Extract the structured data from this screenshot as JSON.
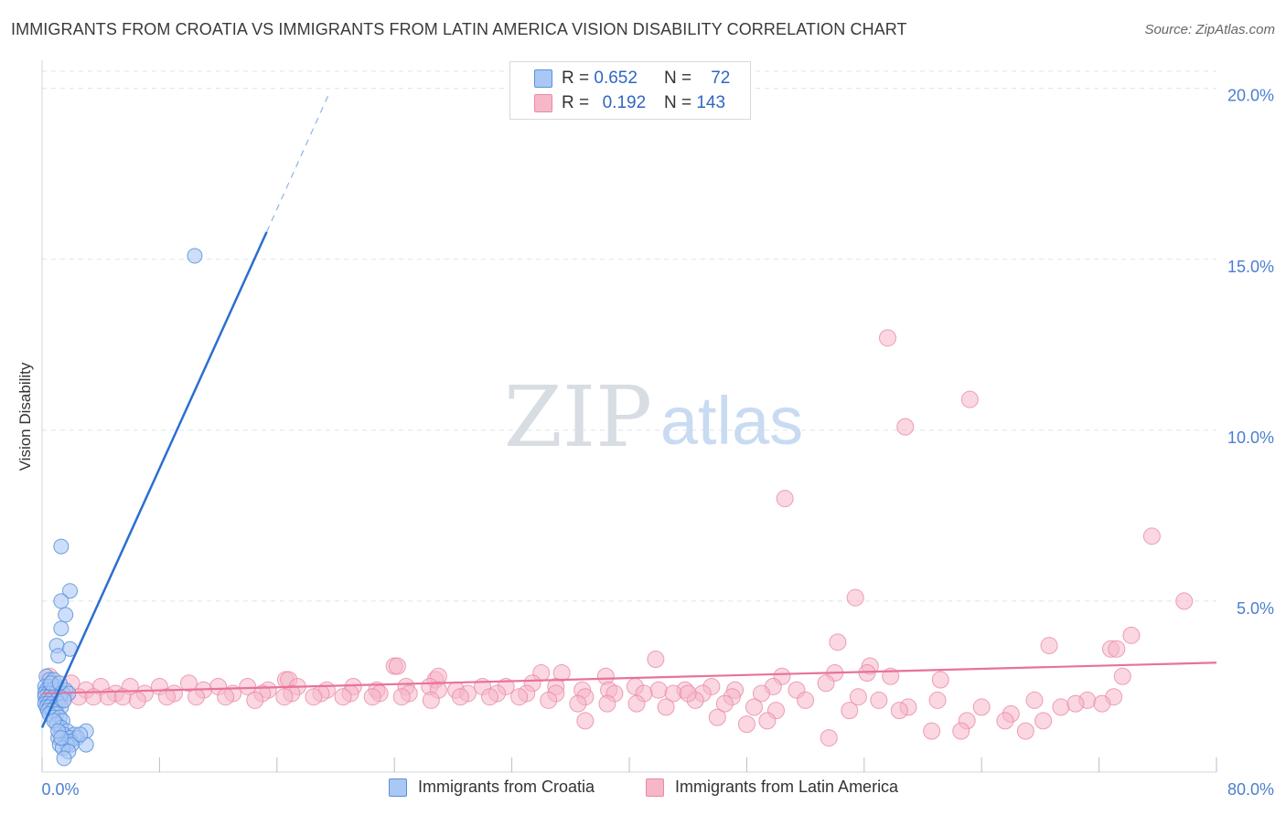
{
  "title": "IMMIGRANTS FROM CROATIA VS IMMIGRANTS FROM LATIN AMERICA VISION DISABILITY CORRELATION CHART",
  "source": "Source: ZipAtlas.com",
  "colors": {
    "blue_fill": "#aac8f5",
    "blue_stroke": "#5a8fd8",
    "blue_line": "#2b6fcf",
    "pink_fill": "#f6b7c8",
    "pink_stroke": "#e889a5",
    "pink_line": "#e8729a",
    "grid": "#dde3ea",
    "tick_text": "#4a7fd1"
  },
  "legend": {
    "row1": {
      "r_label": "R =",
      "r_value": "0.652",
      "n_label": "N =",
      "n_value": "72"
    },
    "row2": {
      "r_label": "R =",
      "r_value": "0.192",
      "n_label": "N =",
      "n_value": "143"
    }
  },
  "bottom_legend": {
    "series1": "Immigrants from Croatia",
    "series2": "Immigrants from Latin America"
  },
  "watermark": {
    "part1": "ZIP",
    "part2": "atlas"
  },
  "chart_data": {
    "type": "scatter",
    "title": "IMMIGRANTS FROM CROATIA VS IMMIGRANTS FROM LATIN AMERICA VISION DISABILITY CORRELATION CHART",
    "xlabel": "",
    "ylabel": "Vision Disability",
    "xlim": [
      0,
      80
    ],
    "ylim": [
      0,
      20.5
    ],
    "x_tick_labels": [
      "0.0%",
      "80.0%"
    ],
    "y_ticks": [
      5,
      10,
      15,
      20
    ],
    "y_tick_labels": [
      "5.0%",
      "10.0%",
      "15.0%",
      "20.0%"
    ],
    "series": [
      {
        "name": "Immigrants from Croatia",
        "color": "#aac8f5",
        "r": 0.652,
        "n": 72,
        "trend": {
          "x": [
            0.0,
            15.3
          ],
          "y": [
            1.3,
            15.8
          ]
        },
        "trend_dashed": {
          "x": [
            15.3,
            19.5
          ],
          "y": [
            15.8,
            19.8
          ]
        },
        "points": [
          [
            10.4,
            15.1
          ],
          [
            1.3,
            6.6
          ],
          [
            1.9,
            5.3
          ],
          [
            1.3,
            5.0
          ],
          [
            1.6,
            4.6
          ],
          [
            1.3,
            4.2
          ],
          [
            1.0,
            3.7
          ],
          [
            1.9,
            3.6
          ],
          [
            1.1,
            3.4
          ],
          [
            0.3,
            2.8
          ],
          [
            0.5,
            2.7
          ],
          [
            0.8,
            2.7
          ],
          [
            0.2,
            2.5
          ],
          [
            0.5,
            2.5
          ],
          [
            1.0,
            2.5
          ],
          [
            0.3,
            2.4
          ],
          [
            0.7,
            2.4
          ],
          [
            1.1,
            2.4
          ],
          [
            1.6,
            2.4
          ],
          [
            0.2,
            2.3
          ],
          [
            0.4,
            2.3
          ],
          [
            0.6,
            2.3
          ],
          [
            0.9,
            2.3
          ],
          [
            1.4,
            2.3
          ],
          [
            1.8,
            2.3
          ],
          [
            0.2,
            2.2
          ],
          [
            0.5,
            2.2
          ],
          [
            0.8,
            2.2
          ],
          [
            1.2,
            2.2
          ],
          [
            0.3,
            2.1
          ],
          [
            0.6,
            2.1
          ],
          [
            1.0,
            2.1
          ],
          [
            0.2,
            2.0
          ],
          [
            0.4,
            2.0
          ],
          [
            0.7,
            2.0
          ],
          [
            1.1,
            2.0
          ],
          [
            0.3,
            1.9
          ],
          [
            0.5,
            1.9
          ],
          [
            0.9,
            1.9
          ],
          [
            1.3,
            1.9
          ],
          [
            0.4,
            1.8
          ],
          [
            0.7,
            1.8
          ],
          [
            0.5,
            1.7
          ],
          [
            1.0,
            1.7
          ],
          [
            0.8,
            1.6
          ],
          [
            1.2,
            1.6
          ],
          [
            1.4,
            1.5
          ],
          [
            1.0,
            1.4
          ],
          [
            1.3,
            1.3
          ],
          [
            1.7,
            1.2
          ],
          [
            3.0,
            1.2
          ],
          [
            1.5,
            1.1
          ],
          [
            2.2,
            1.1
          ],
          [
            1.1,
            1.0
          ],
          [
            1.9,
            1.0
          ],
          [
            2.4,
            1.0
          ],
          [
            1.6,
            0.9
          ],
          [
            1.9,
            0.9
          ],
          [
            1.2,
            0.8
          ],
          [
            1.7,
            0.8
          ],
          [
            2.0,
            0.8
          ],
          [
            3.0,
            0.8
          ],
          [
            1.4,
            0.7
          ],
          [
            1.8,
            0.6
          ],
          [
            1.5,
            0.4
          ],
          [
            0.6,
            2.6
          ],
          [
            1.2,
            2.6
          ],
          [
            1.5,
            2.1
          ],
          [
            0.8,
            1.5
          ],
          [
            1.1,
            1.2
          ],
          [
            1.3,
            1.0
          ],
          [
            2.6,
            1.1
          ]
        ]
      },
      {
        "name": "Immigrants from Latin America",
        "color": "#f6b7c8",
        "r": 0.192,
        "n": 143,
        "trend": {
          "x": [
            0.0,
            80.0
          ],
          "y": [
            2.3,
            3.2
          ]
        },
        "points": [
          [
            57.6,
            12.7
          ],
          [
            63.2,
            10.9
          ],
          [
            58.8,
            10.1
          ],
          [
            50.6,
            8.0
          ],
          [
            75.6,
            6.9
          ],
          [
            77.8,
            5.0
          ],
          [
            55.4,
            5.1
          ],
          [
            74.2,
            4.0
          ],
          [
            54.2,
            3.8
          ],
          [
            68.6,
            3.7
          ],
          [
            72.8,
            3.6
          ],
          [
            73.2,
            3.6
          ],
          [
            41.8,
            3.3
          ],
          [
            24.0,
            3.1
          ],
          [
            24.2,
            3.1
          ],
          [
            56.4,
            3.1
          ],
          [
            54.0,
            2.9
          ],
          [
            57.8,
            2.8
          ],
          [
            73.6,
            2.8
          ],
          [
            16.6,
            2.7
          ],
          [
            16.8,
            2.7
          ],
          [
            26.8,
            2.7
          ],
          [
            27.0,
            2.8
          ],
          [
            34.0,
            2.9
          ],
          [
            35.4,
            2.9
          ],
          [
            38.4,
            2.8
          ],
          [
            56.2,
            2.9
          ],
          [
            50.4,
            2.8
          ],
          [
            53.4,
            2.6
          ],
          [
            61.2,
            2.7
          ],
          [
            2.0,
            2.6
          ],
          [
            4.0,
            2.5
          ],
          [
            6.0,
            2.5
          ],
          [
            8.0,
            2.5
          ],
          [
            10.0,
            2.6
          ],
          [
            12.0,
            2.5
          ],
          [
            14.0,
            2.5
          ],
          [
            15.4,
            2.4
          ],
          [
            17.4,
            2.5
          ],
          [
            19.4,
            2.4
          ],
          [
            21.2,
            2.5
          ],
          [
            22.8,
            2.4
          ],
          [
            24.8,
            2.5
          ],
          [
            26.4,
            2.5
          ],
          [
            28.2,
            2.4
          ],
          [
            30.0,
            2.5
          ],
          [
            31.6,
            2.5
          ],
          [
            33.4,
            2.6
          ],
          [
            35.0,
            2.5
          ],
          [
            36.8,
            2.4
          ],
          [
            38.6,
            2.4
          ],
          [
            40.4,
            2.5
          ],
          [
            42.0,
            2.4
          ],
          [
            43.8,
            2.4
          ],
          [
            45.6,
            2.5
          ],
          [
            47.2,
            2.4
          ],
          [
            49.8,
            2.5
          ],
          [
            51.4,
            2.4
          ],
          [
            1.0,
            2.4
          ],
          [
            3.0,
            2.4
          ],
          [
            5.0,
            2.3
          ],
          [
            7.0,
            2.3
          ],
          [
            9.0,
            2.3
          ],
          [
            11.0,
            2.4
          ],
          [
            13.0,
            2.3
          ],
          [
            15.0,
            2.3
          ],
          [
            17.0,
            2.3
          ],
          [
            19.0,
            2.3
          ],
          [
            21.0,
            2.3
          ],
          [
            23.0,
            2.3
          ],
          [
            25.0,
            2.3
          ],
          [
            27.0,
            2.4
          ],
          [
            29.0,
            2.3
          ],
          [
            31.0,
            2.3
          ],
          [
            33.0,
            2.3
          ],
          [
            35.0,
            2.3
          ],
          [
            37.0,
            2.2
          ],
          [
            39.0,
            2.3
          ],
          [
            41.0,
            2.3
          ],
          [
            43.0,
            2.3
          ],
          [
            45.0,
            2.3
          ],
          [
            47.0,
            2.2
          ],
          [
            49.0,
            2.3
          ],
          [
            1.5,
            2.2
          ],
          [
            2.5,
            2.2
          ],
          [
            3.5,
            2.2
          ],
          [
            4.5,
            2.2
          ],
          [
            5.5,
            2.2
          ],
          [
            6.5,
            2.1
          ],
          [
            8.5,
            2.2
          ],
          [
            10.5,
            2.2
          ],
          [
            12.5,
            2.2
          ],
          [
            14.5,
            2.1
          ],
          [
            16.5,
            2.2
          ],
          [
            18.5,
            2.2
          ],
          [
            20.5,
            2.2
          ],
          [
            22.5,
            2.2
          ],
          [
            24.5,
            2.2
          ],
          [
            26.5,
            2.1
          ],
          [
            28.5,
            2.2
          ],
          [
            30.5,
            2.2
          ],
          [
            32.5,
            2.2
          ],
          [
            34.5,
            2.1
          ],
          [
            36.5,
            2.0
          ],
          [
            38.5,
            2.0
          ],
          [
            40.5,
            2.0
          ],
          [
            42.5,
            1.9
          ],
          [
            44.5,
            2.1
          ],
          [
            46.5,
            2.0
          ],
          [
            48.5,
            1.9
          ],
          [
            50.0,
            1.8
          ],
          [
            52.0,
            2.1
          ],
          [
            55.6,
            2.2
          ],
          [
            57.0,
            2.1
          ],
          [
            59.0,
            1.9
          ],
          [
            61.0,
            2.1
          ],
          [
            64.0,
            1.9
          ],
          [
            66.0,
            1.7
          ],
          [
            67.6,
            2.1
          ],
          [
            69.4,
            1.9
          ],
          [
            71.2,
            2.1
          ],
          [
            73.0,
            2.2
          ],
          [
            55.0,
            1.8
          ],
          [
            58.4,
            1.8
          ],
          [
            63.0,
            1.5
          ],
          [
            65.6,
            1.5
          ],
          [
            68.2,
            1.5
          ],
          [
            70.4,
            2.0
          ],
          [
            72.2,
            2.0
          ],
          [
            49.4,
            1.5
          ],
          [
            60.6,
            1.2
          ],
          [
            62.6,
            1.2
          ],
          [
            67.0,
            1.2
          ],
          [
            53.6,
            1.0
          ],
          [
            46.0,
            1.6
          ],
          [
            37.0,
            1.5
          ],
          [
            48.0,
            1.4
          ],
          [
            44.0,
            2.3
          ],
          [
            0.5,
            2.8
          ]
        ]
      }
    ]
  }
}
